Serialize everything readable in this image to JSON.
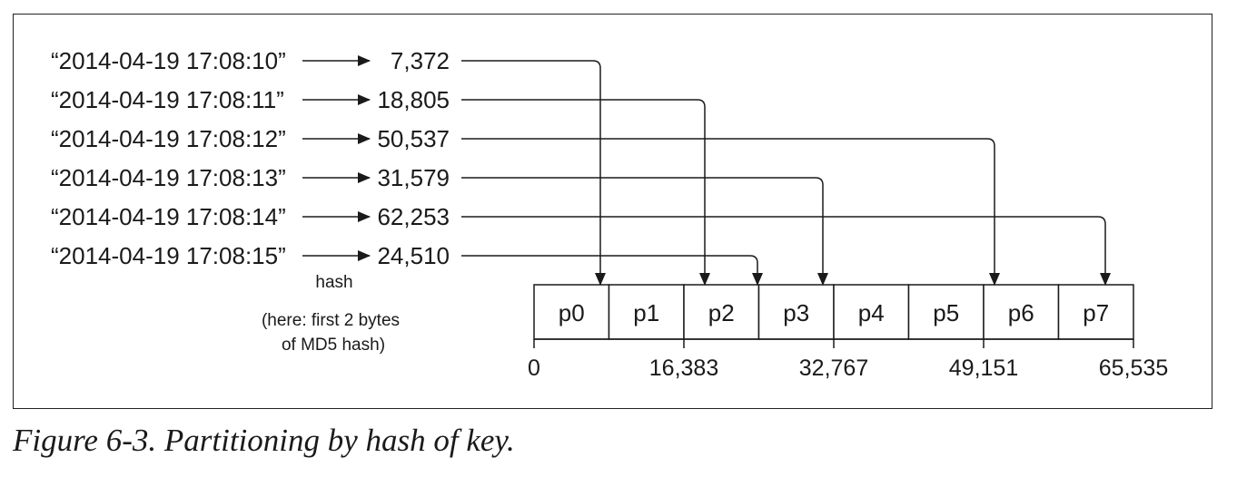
{
  "keys": [
    {
      "key": "“2014-04-19 17:08:10”",
      "hash": "7,372",
      "partition": 0
    },
    {
      "key": "“2014-04-19 17:08:11”",
      "hash": "18,805",
      "partition": 2
    },
    {
      "key": "“2014-04-19 17:08:12”",
      "hash": "50,537",
      "partition": 6
    },
    {
      "key": "“2014-04-19 17:08:13”",
      "hash": "31,579",
      "partition": 3
    },
    {
      "key": "“2014-04-19 17:08:14”",
      "hash": "62,253",
      "partition": 7
    },
    {
      "key": "“2014-04-19 17:08:15”",
      "hash": "24,510",
      "partition": 2
    }
  ],
  "hash_note": {
    "title": "hash",
    "lines": [
      "(here: first 2 bytes",
      "of MD5 hash)"
    ]
  },
  "partitions": [
    "p0",
    "p1",
    "p2",
    "p3",
    "p4",
    "p5",
    "p6",
    "p7"
  ],
  "ticks": [
    "0",
    "16,383",
    "32,767",
    "49,151",
    "65,535"
  ],
  "caption": "Figure 6-3. Partitioning by hash of key."
}
